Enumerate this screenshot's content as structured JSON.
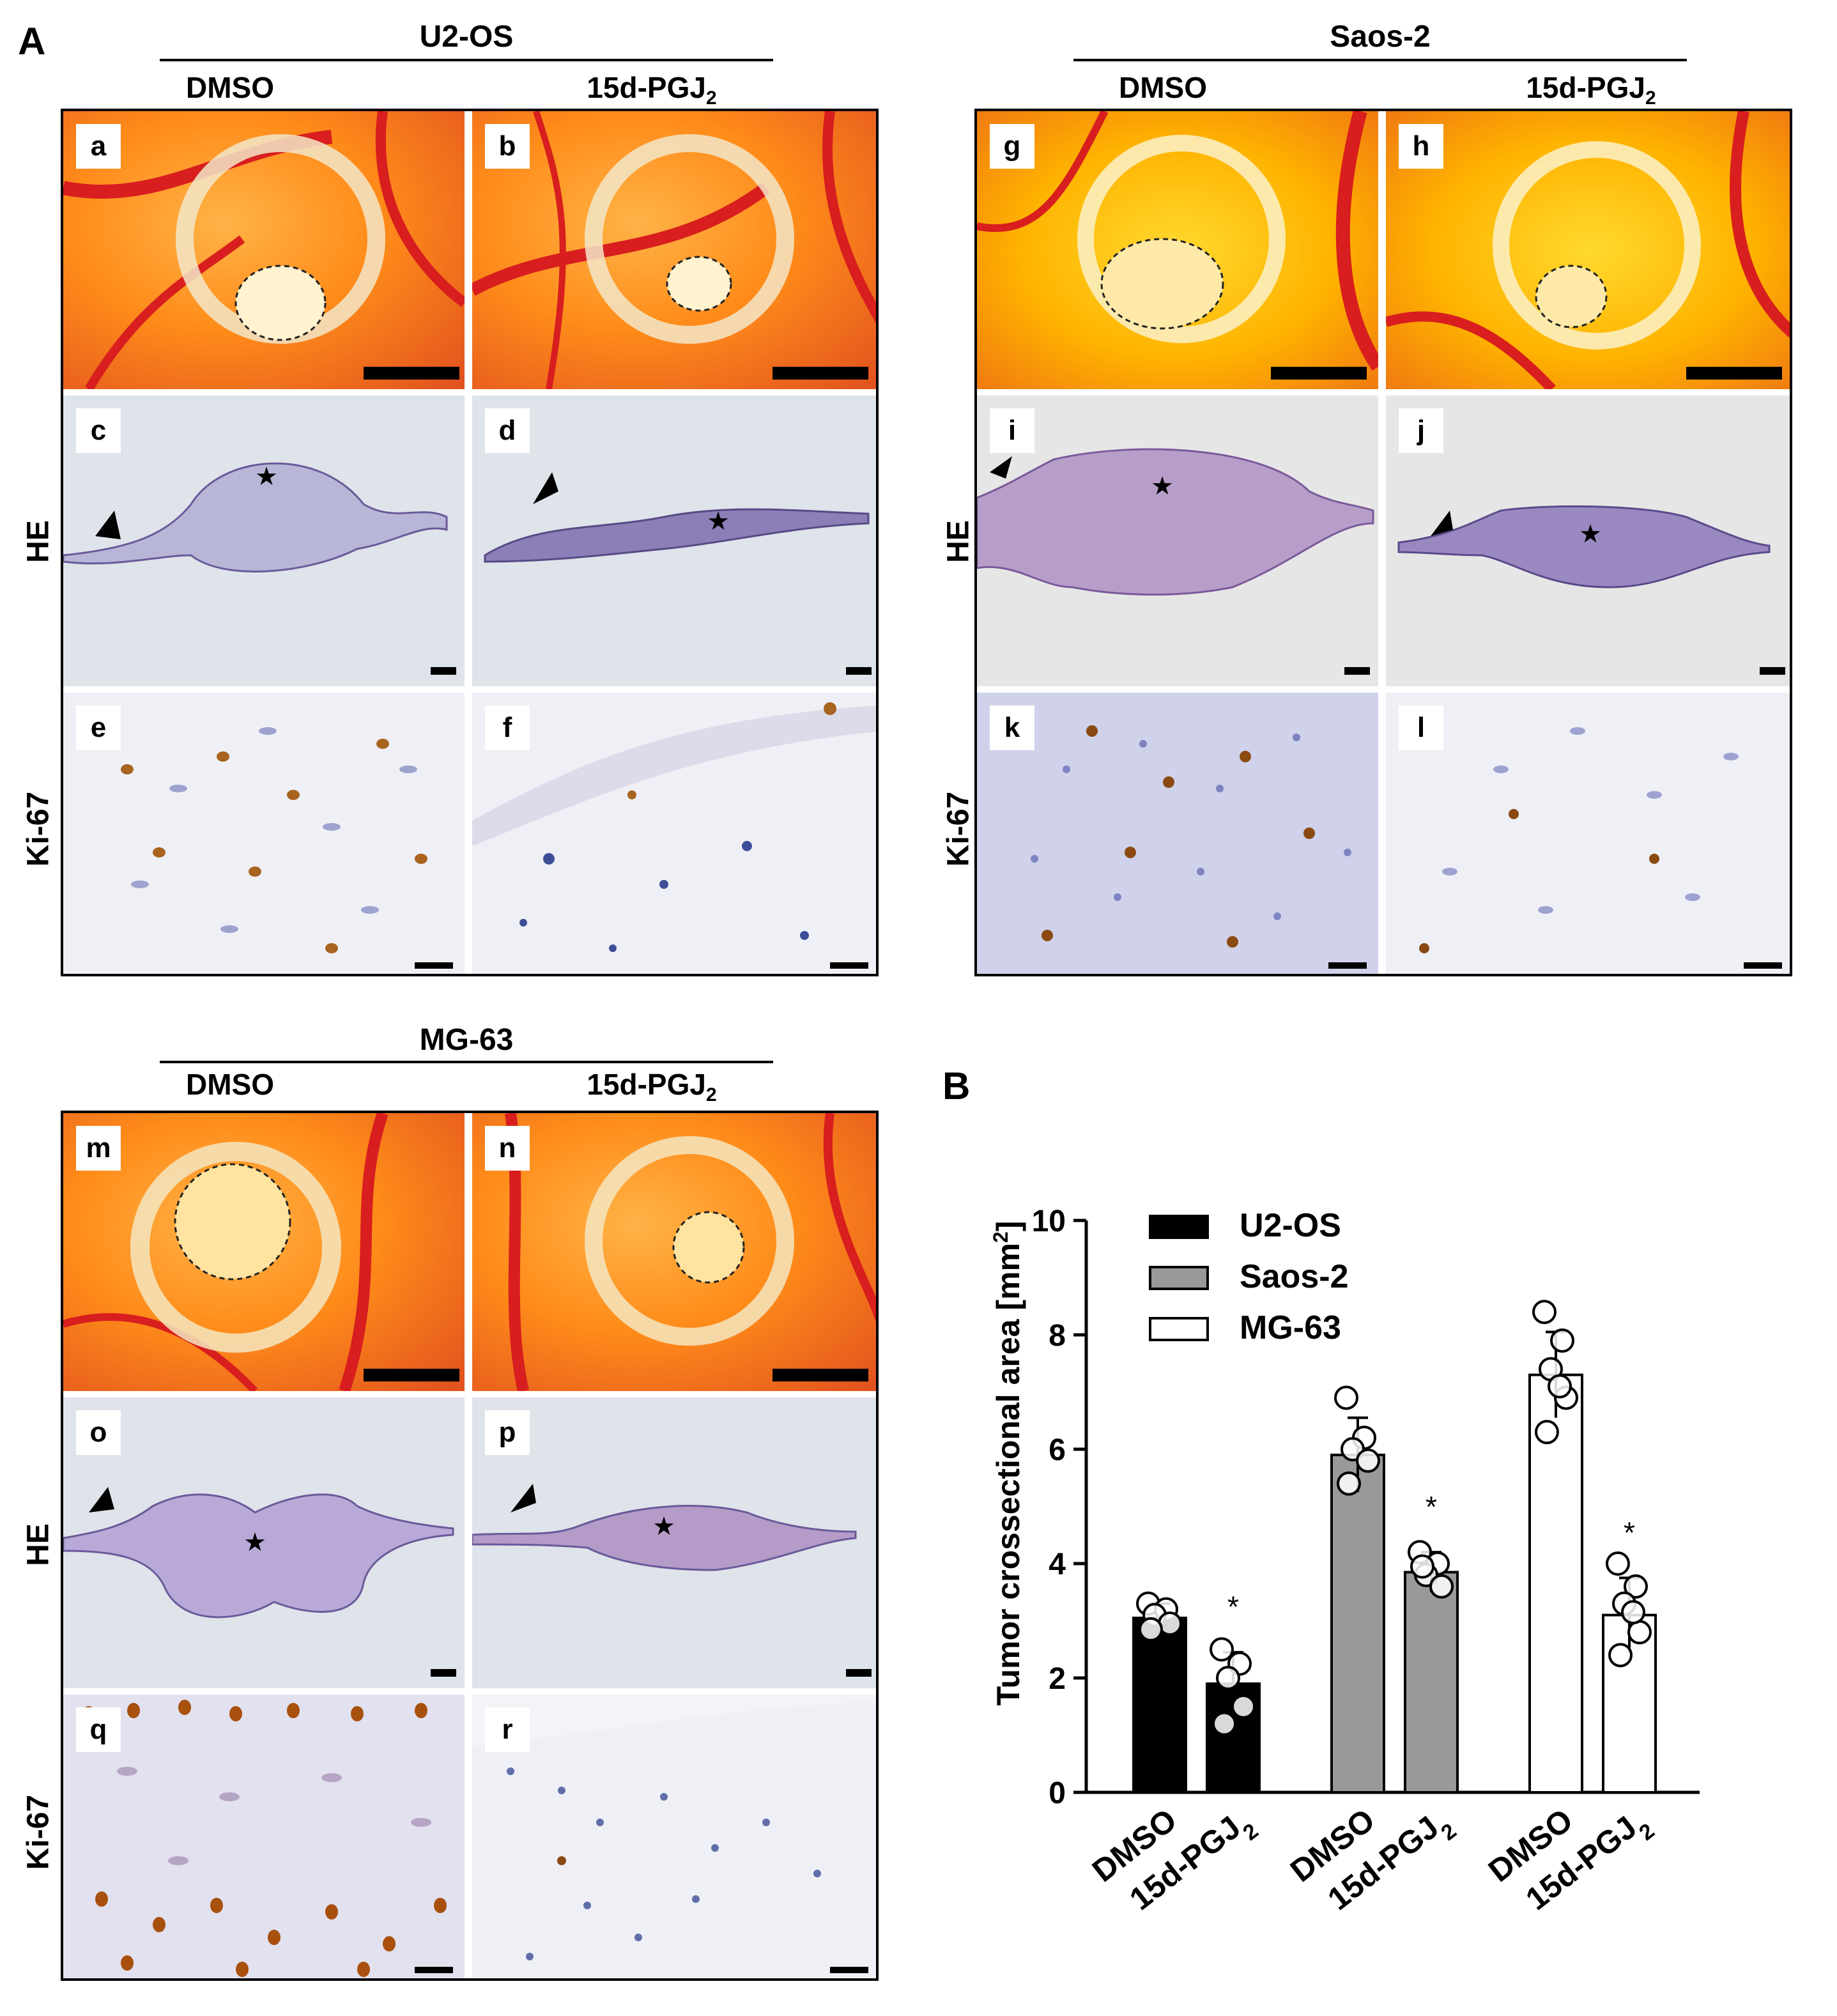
{
  "panel_letters": {
    "A": "A",
    "B": "B"
  },
  "groups": [
    {
      "title": "U2-OS",
      "cond1": "DMSO",
      "cond2": "15d-PGJ",
      "cond2_sub": "2",
      "labels": [
        "a",
        "b",
        "c",
        "d",
        "e",
        "f"
      ]
    },
    {
      "title": "Saos-2",
      "cond1": "DMSO",
      "cond2": "15d-PGJ",
      "cond2_sub": "2",
      "labels": [
        "g",
        "h",
        "i",
        "j",
        "k",
        "l"
      ]
    },
    {
      "title": "MG-63",
      "cond1": "DMSO",
      "cond2": "15d-PGJ",
      "cond2_sub": "2",
      "labels": [
        "m",
        "n",
        "o",
        "p",
        "q",
        "r"
      ]
    }
  ],
  "row_labels": {
    "he": "HE",
    "ki67": "Ki-67"
  },
  "chart_data": {
    "type": "bar",
    "ylabel": "Tumor crossectional area [mm2]",
    "ylabel_main": "Tumor crossectional area [mm",
    "ylabel_sup": "2",
    "ylabel_end": "]",
    "ylim": [
      0,
      10
    ],
    "yticks": [
      "0",
      "2",
      "4",
      "6",
      "8",
      "10"
    ],
    "categories": [
      "DMSO",
      "15d-PGJ2",
      "DMSO",
      "15d-PGJ2",
      "DMSO",
      "15d-PGJ2"
    ],
    "cat_main": [
      "DMSO",
      "15d-PGJ",
      "DMSO",
      "15d-PGJ",
      "DMSO",
      "15d-PGJ"
    ],
    "cat_sub": [
      "",
      "2",
      "",
      "2",
      "",
      "2"
    ],
    "legend": [
      "U2-OS",
      "Saos-2",
      "MG-63"
    ],
    "legend_position": "top-left",
    "colors": {
      "U2-OS": "#000000",
      "Saos-2": "#999999",
      "MG-63": "#ffffff"
    },
    "bars": [
      {
        "group": "U2-OS",
        "value": 3.05,
        "sd": 0.25,
        "points": [
          3.3,
          3.2,
          3.1,
          2.95,
          2.85
        ]
      },
      {
        "group": "U2-OS",
        "value": 1.9,
        "sd": 0.55,
        "points": [
          2.5,
          2.25,
          2.0,
          1.5,
          1.2
        ],
        "star": "*"
      },
      {
        "group": "Saos-2",
        "value": 5.9,
        "sd": 0.65,
        "points": [
          6.9,
          6.2,
          6.0,
          5.8,
          5.4
        ]
      },
      {
        "group": "Saos-2",
        "value": 3.85,
        "sd": 0.35,
        "points": [
          4.2,
          4.0,
          3.8,
          3.6,
          3.95
        ],
        "star": "*"
      },
      {
        "group": "MG-63",
        "value": 7.3,
        "sd": 0.75,
        "points": [
          8.4,
          7.9,
          7.4,
          6.9,
          6.3,
          7.1
        ]
      },
      {
        "group": "MG-63",
        "value": 3.1,
        "sd": 0.65,
        "points": [
          4.0,
          3.6,
          3.3,
          2.8,
          2.4,
          3.15
        ],
        "star": "*"
      }
    ]
  }
}
